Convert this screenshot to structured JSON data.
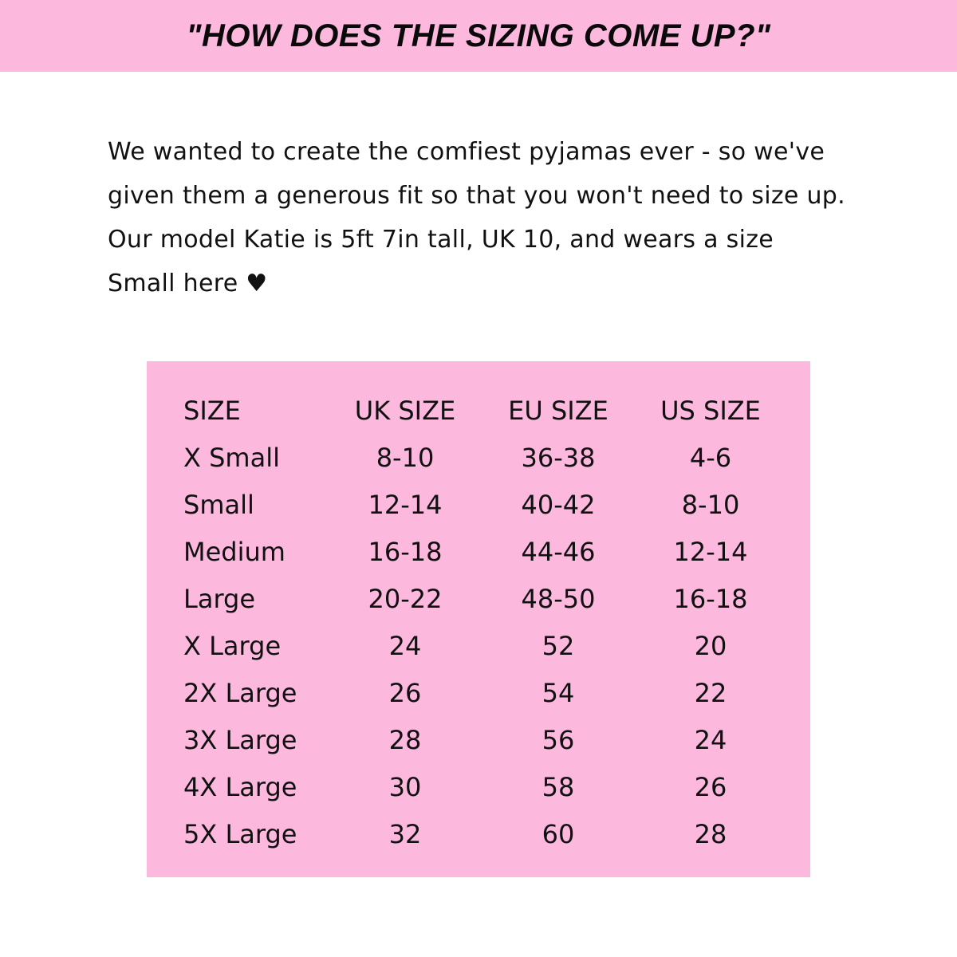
{
  "header": {
    "title": "\"HOW DOES THE SIZING COME UP?\""
  },
  "intro": {
    "lines": [
      "We wanted to create the comfiest pyjamas ever - so we've",
      "given them a generous fit so that you won't need to size up.",
      "Our model Katie is 5ft 7in tall, UK 10, and wears a size",
      "Small here ♥"
    ]
  },
  "size_table": {
    "headers": [
      "SIZE",
      "UK SIZE",
      "EU SIZE",
      "US SIZE"
    ],
    "rows": [
      [
        "X Small",
        "8-10",
        "36-38",
        "4-6"
      ],
      [
        "Small",
        "12-14",
        "40-42",
        "8-10"
      ],
      [
        "Medium",
        "16-18",
        "44-46",
        "12-14"
      ],
      [
        "Large",
        "20-22",
        "48-50",
        "16-18"
      ],
      [
        "X Large",
        "24",
        "52",
        "20"
      ],
      [
        "2X Large",
        "26",
        "54",
        "22"
      ],
      [
        "3X Large",
        "28",
        "56",
        "24"
      ],
      [
        "4X Large",
        "30",
        "58",
        "26"
      ],
      [
        "5X Large",
        "32",
        "60",
        "28"
      ]
    ]
  },
  "colors": {
    "accent_pink": "#fdb8de",
    "text": "#111111"
  }
}
